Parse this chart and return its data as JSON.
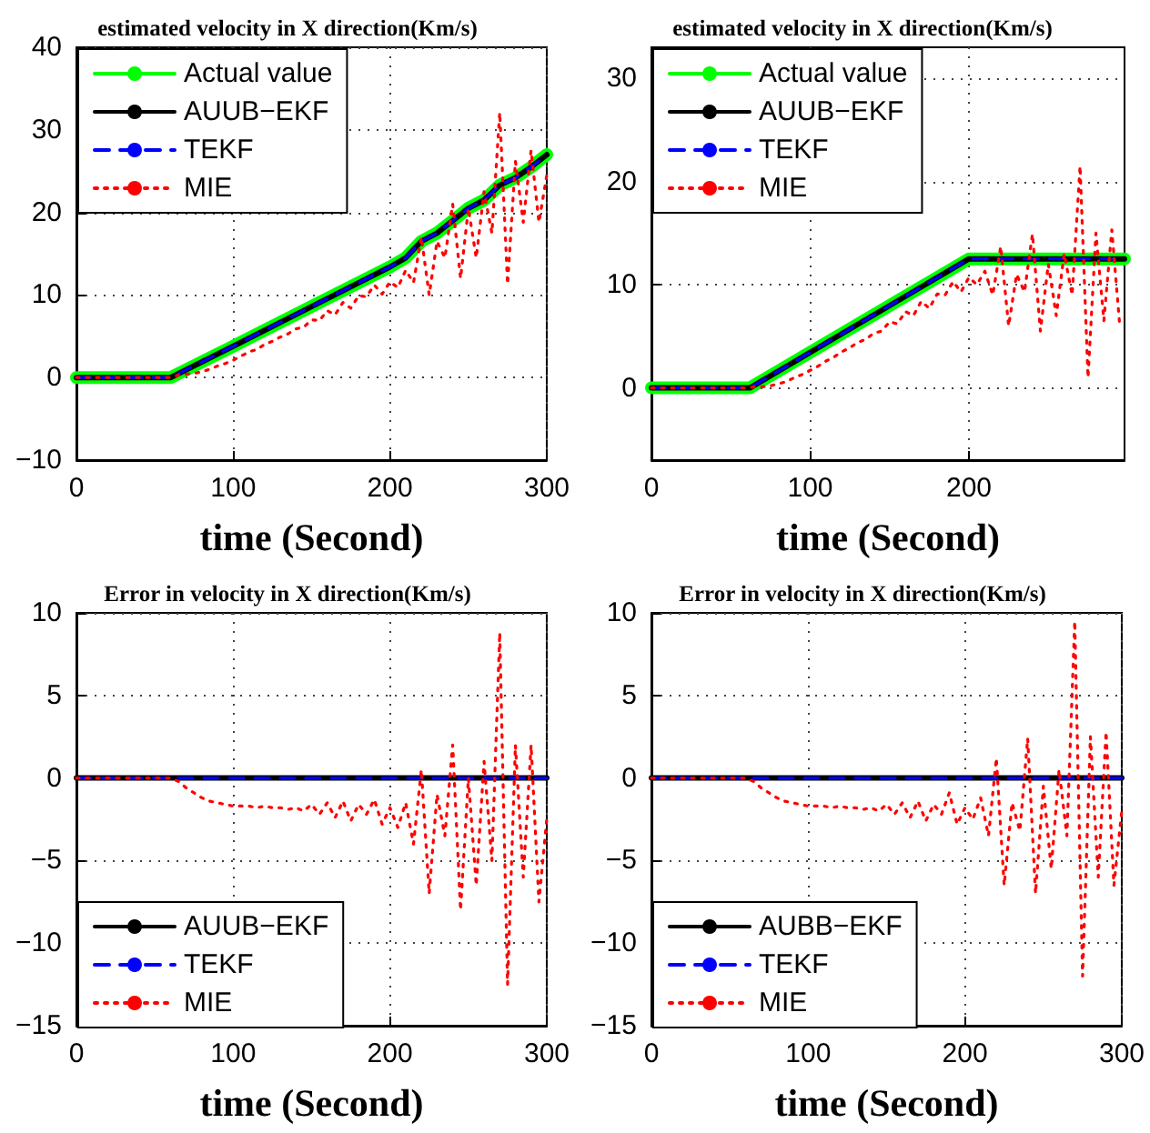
{
  "chart_data": [
    {
      "type": "line",
      "title": "estimated velocity in X direction(Km/s)",
      "xlabel": "time (Second)",
      "xlim": [
        0,
        300
      ],
      "xticks": [
        0,
        100,
        200,
        300
      ],
      "ylim": [
        -10,
        40
      ],
      "yticks": [
        -10,
        0,
        10,
        20,
        30,
        40
      ],
      "grid": true,
      "legend": "top left",
      "series": [
        {
          "name": "Actual value",
          "color": "#00ff00",
          "line_style": "solid",
          "x": [
            0,
            60,
            100,
            150,
            200,
            210,
            220,
            230,
            240,
            250,
            260,
            270,
            280,
            290,
            300
          ],
          "values": [
            0,
            0,
            3.8,
            8.6,
            13.4,
            14.5,
            16.5,
            17.5,
            19,
            20.5,
            21.5,
            23.3,
            24.2,
            25.5,
            27
          ]
        },
        {
          "name": "AUUB−EKF",
          "color": "#000000",
          "line_style": "solid",
          "x": [
            0,
            60,
            100,
            150,
            200,
            210,
            220,
            230,
            240,
            250,
            260,
            270,
            280,
            290,
            300
          ],
          "values": [
            0,
            0,
            3.8,
            8.6,
            13.4,
            14.5,
            16.5,
            17.5,
            19,
            20.5,
            21.5,
            23.3,
            24.2,
            25.5,
            27
          ]
        },
        {
          "name": "TEKF",
          "color": "#0000ff",
          "line_style": "dashed",
          "x": [
            0,
            60,
            100,
            150,
            200,
            210,
            220,
            230,
            240,
            250,
            260,
            270,
            280,
            290,
            300
          ],
          "values": [
            0,
            0,
            3.8,
            8.6,
            13.4,
            14.5,
            16.5,
            17.5,
            19,
            20.5,
            21.5,
            23.3,
            24.2,
            25.5,
            27
          ]
        },
        {
          "name": "MIE",
          "color": "#ff0000",
          "line_style": "dotted",
          "x": [
            0,
            5,
            10,
            15,
            20,
            25,
            30,
            35,
            40,
            45,
            50,
            55,
            60,
            65,
            70,
            75,
            80,
            85,
            90,
            95,
            100,
            105,
            110,
            115,
            120,
            125,
            130,
            135,
            140,
            145,
            150,
            155,
            160,
            165,
            170,
            175,
            180,
            185,
            190,
            195,
            200,
            205,
            210,
            215,
            220,
            225,
            230,
            235,
            240,
            245,
            250,
            255,
            260,
            265,
            270,
            275,
            280,
            285,
            290,
            295,
            300
          ],
          "values": [
            0,
            0,
            0,
            0,
            0,
            0,
            0,
            0,
            0,
            0,
            0,
            0,
            0,
            0.3,
            0.4,
            0.5,
            0.7,
            1.0,
            1.4,
            1.7,
            2.1,
            2.6,
            3.1,
            3.4,
            4.0,
            4.4,
            4.9,
            5.3,
            5.9,
            6.1,
            7.0,
            6.9,
            8.1,
            7.6,
            9.1,
            8.4,
            9.9,
            9.8,
            11.2,
            10.1,
            11.6,
            10.9,
            13.0,
            11.5,
            17.0,
            10.0,
            16.5,
            14.5,
            21.0,
            12.0,
            20.5,
            14.5,
            22.5,
            17.5,
            32.1,
            11.3,
            26.2,
            18.8,
            27.5,
            18.8,
            24.5
          ]
        }
      ]
    },
    {
      "type": "line",
      "title": "estimated velocity in X direction(Km/s)",
      "xlabel": "time (Second)",
      "xlim": [
        0,
        298
      ],
      "xticks": [
        0,
        100,
        200
      ],
      "ylim": [
        -7,
        33
      ],
      "yticks": [
        0,
        10,
        20,
        30
      ],
      "grid": true,
      "legend": "top left",
      "series": [
        {
          "name": "Actual value",
          "color": "#00ff00",
          "line_style": "solid",
          "x": [
            0,
            62,
            200,
            298
          ],
          "values": [
            0,
            0,
            12.5,
            12.5
          ]
        },
        {
          "name": "AUUB−EKF",
          "color": "#000000",
          "line_style": "solid",
          "x": [
            0,
            62,
            200,
            298
          ],
          "values": [
            0,
            0,
            12.5,
            12.5
          ]
        },
        {
          "name": "TEKF",
          "color": "#0000ff",
          "line_style": "dashed",
          "x": [
            0,
            62,
            200,
            298
          ],
          "values": [
            0,
            0,
            12.5,
            12.5
          ]
        },
        {
          "name": "MIE",
          "color": "#ff0000",
          "line_style": "dotted",
          "x": [
            0,
            5,
            10,
            15,
            20,
            25,
            30,
            35,
            40,
            45,
            50,
            55,
            60,
            65,
            70,
            75,
            80,
            85,
            90,
            95,
            100,
            105,
            110,
            115,
            120,
            125,
            130,
            135,
            140,
            145,
            150,
            155,
            160,
            165,
            170,
            175,
            180,
            185,
            190,
            195,
            200,
            205,
            210,
            215,
            220,
            225,
            230,
            235,
            240,
            245,
            250,
            255,
            260,
            265,
            270,
            275,
            280,
            285,
            290,
            295
          ],
          "values": [
            0,
            0,
            0,
            0,
            0,
            0,
            0,
            0,
            0,
            0,
            0,
            0,
            0,
            0.1,
            0.1,
            0.2,
            0.4,
            0.6,
            1.0,
            1.3,
            1.7,
            2.1,
            2.6,
            3.0,
            3.5,
            3.9,
            4.4,
            4.7,
            5.3,
            5.5,
            6.4,
            6.2,
            7.4,
            7.0,
            8.4,
            7.7,
            9.1,
            9.0,
            10.3,
            9.3,
            10.7,
            10.0,
            11.3,
            9.0,
            13.7,
            6.0,
            11.0,
            9.3,
            14.9,
            5.5,
            12.0,
            7.0,
            13.0,
            9.0,
            21.5,
            1.0,
            15.0,
            6.5,
            15.3,
            6.0
          ]
        }
      ]
    },
    {
      "type": "line",
      "title": "Error in velocity in X direction(Km/s)",
      "xlabel": "time (Second)",
      "xlim": [
        0,
        300
      ],
      "xticks": [
        0,
        100,
        200,
        300
      ],
      "ylim": [
        -15,
        10
      ],
      "yticks": [
        -15,
        -10,
        -5,
        0,
        5,
        10
      ],
      "grid": true,
      "legend": "bottom left",
      "series": [
        {
          "name": "AUUB−EKF",
          "color": "#000000",
          "line_style": "solid",
          "x": [
            0,
            300
          ],
          "values": [
            0,
            0
          ]
        },
        {
          "name": "TEKF",
          "color": "#0000ff",
          "line_style": "dashed",
          "x": [
            0,
            300
          ],
          "values": [
            0,
            0
          ]
        },
        {
          "name": "MIE",
          "color": "#ff0000",
          "line_style": "dotted",
          "x": [
            0,
            5,
            10,
            15,
            20,
            25,
            30,
            35,
            40,
            45,
            50,
            55,
            60,
            65,
            70,
            75,
            80,
            85,
            90,
            95,
            100,
            105,
            110,
            115,
            120,
            125,
            130,
            135,
            140,
            145,
            150,
            155,
            160,
            165,
            170,
            175,
            180,
            185,
            190,
            195,
            200,
            205,
            210,
            215,
            220,
            225,
            230,
            235,
            240,
            245,
            250,
            255,
            260,
            265,
            270,
            275,
            280,
            285,
            290,
            295,
            300
          ],
          "values": [
            0,
            0,
            0,
            0,
            0,
            0,
            0,
            0,
            0,
            0,
            0,
            0,
            0,
            -0.2,
            -0.6,
            -0.9,
            -1.2,
            -1.4,
            -1.5,
            -1.6,
            -1.7,
            -1.7,
            -1.7,
            -1.8,
            -1.7,
            -1.8,
            -1.8,
            -1.9,
            -1.8,
            -2.0,
            -1.6,
            -2.2,
            -1.5,
            -2.4,
            -1.4,
            -2.6,
            -1.6,
            -2.2,
            -1.3,
            -2.8,
            -1.8,
            -3.0,
            -1.5,
            -4.0,
            0.5,
            -7.0,
            -1.0,
            -3.5,
            2.0,
            -8.0,
            0,
            -6.5,
            1.0,
            -5.0,
            8.8,
            -12.5,
            2.0,
            -6.0,
            2.0,
            -7.5,
            -2.5
          ]
        }
      ]
    },
    {
      "type": "line",
      "title": "Error in velocity in X direction(Km/s)",
      "xlabel": "time (Second)",
      "xlim": [
        0,
        300
      ],
      "xticks": [
        0,
        100,
        200,
        300
      ],
      "ylim": [
        -15,
        10
      ],
      "yticks": [
        -15,
        -10,
        -5,
        0,
        5,
        10
      ],
      "grid": true,
      "legend": "bottom left",
      "series": [
        {
          "name": "AUBB−EKF",
          "color": "#000000",
          "line_style": "solid",
          "x": [
            0,
            300
          ],
          "values": [
            0,
            0
          ]
        },
        {
          "name": "TEKF",
          "color": "#0000ff",
          "line_style": "dashed",
          "x": [
            0,
            300
          ],
          "values": [
            0,
            0
          ]
        },
        {
          "name": "MIE",
          "color": "#ff0000",
          "line_style": "dotted",
          "x": [
            0,
            5,
            10,
            15,
            20,
            25,
            30,
            35,
            40,
            45,
            50,
            55,
            60,
            65,
            70,
            75,
            80,
            85,
            90,
            95,
            100,
            105,
            110,
            115,
            120,
            125,
            130,
            135,
            140,
            145,
            150,
            155,
            160,
            165,
            170,
            175,
            180,
            185,
            190,
            195,
            200,
            205,
            210,
            215,
            220,
            225,
            230,
            235,
            240,
            245,
            250,
            255,
            260,
            265,
            270,
            275,
            280,
            285,
            290,
            295,
            300
          ],
          "values": [
            0,
            0,
            0,
            0,
            0,
            0,
            0,
            0,
            0,
            0,
            0,
            0,
            0,
            -0.2,
            -0.6,
            -0.9,
            -1.2,
            -1.4,
            -1.5,
            -1.6,
            -1.7,
            -1.7,
            -1.7,
            -1.8,
            -1.7,
            -1.8,
            -1.8,
            -1.9,
            -1.8,
            -2.0,
            -1.6,
            -2.2,
            -1.5,
            -2.4,
            -1.4,
            -2.6,
            -1.6,
            -2.2,
            -0.9,
            -2.8,
            -1.8,
            -2.5,
            -1.2,
            -3.5,
            1.2,
            -6.5,
            -1.5,
            -3.2,
            2.4,
            -7.0,
            -0.5,
            -5.5,
            0.5,
            -3.5,
            9.5,
            -12.0,
            2.5,
            -6.0,
            2.8,
            -6.5,
            -2.0
          ]
        }
      ]
    }
  ]
}
